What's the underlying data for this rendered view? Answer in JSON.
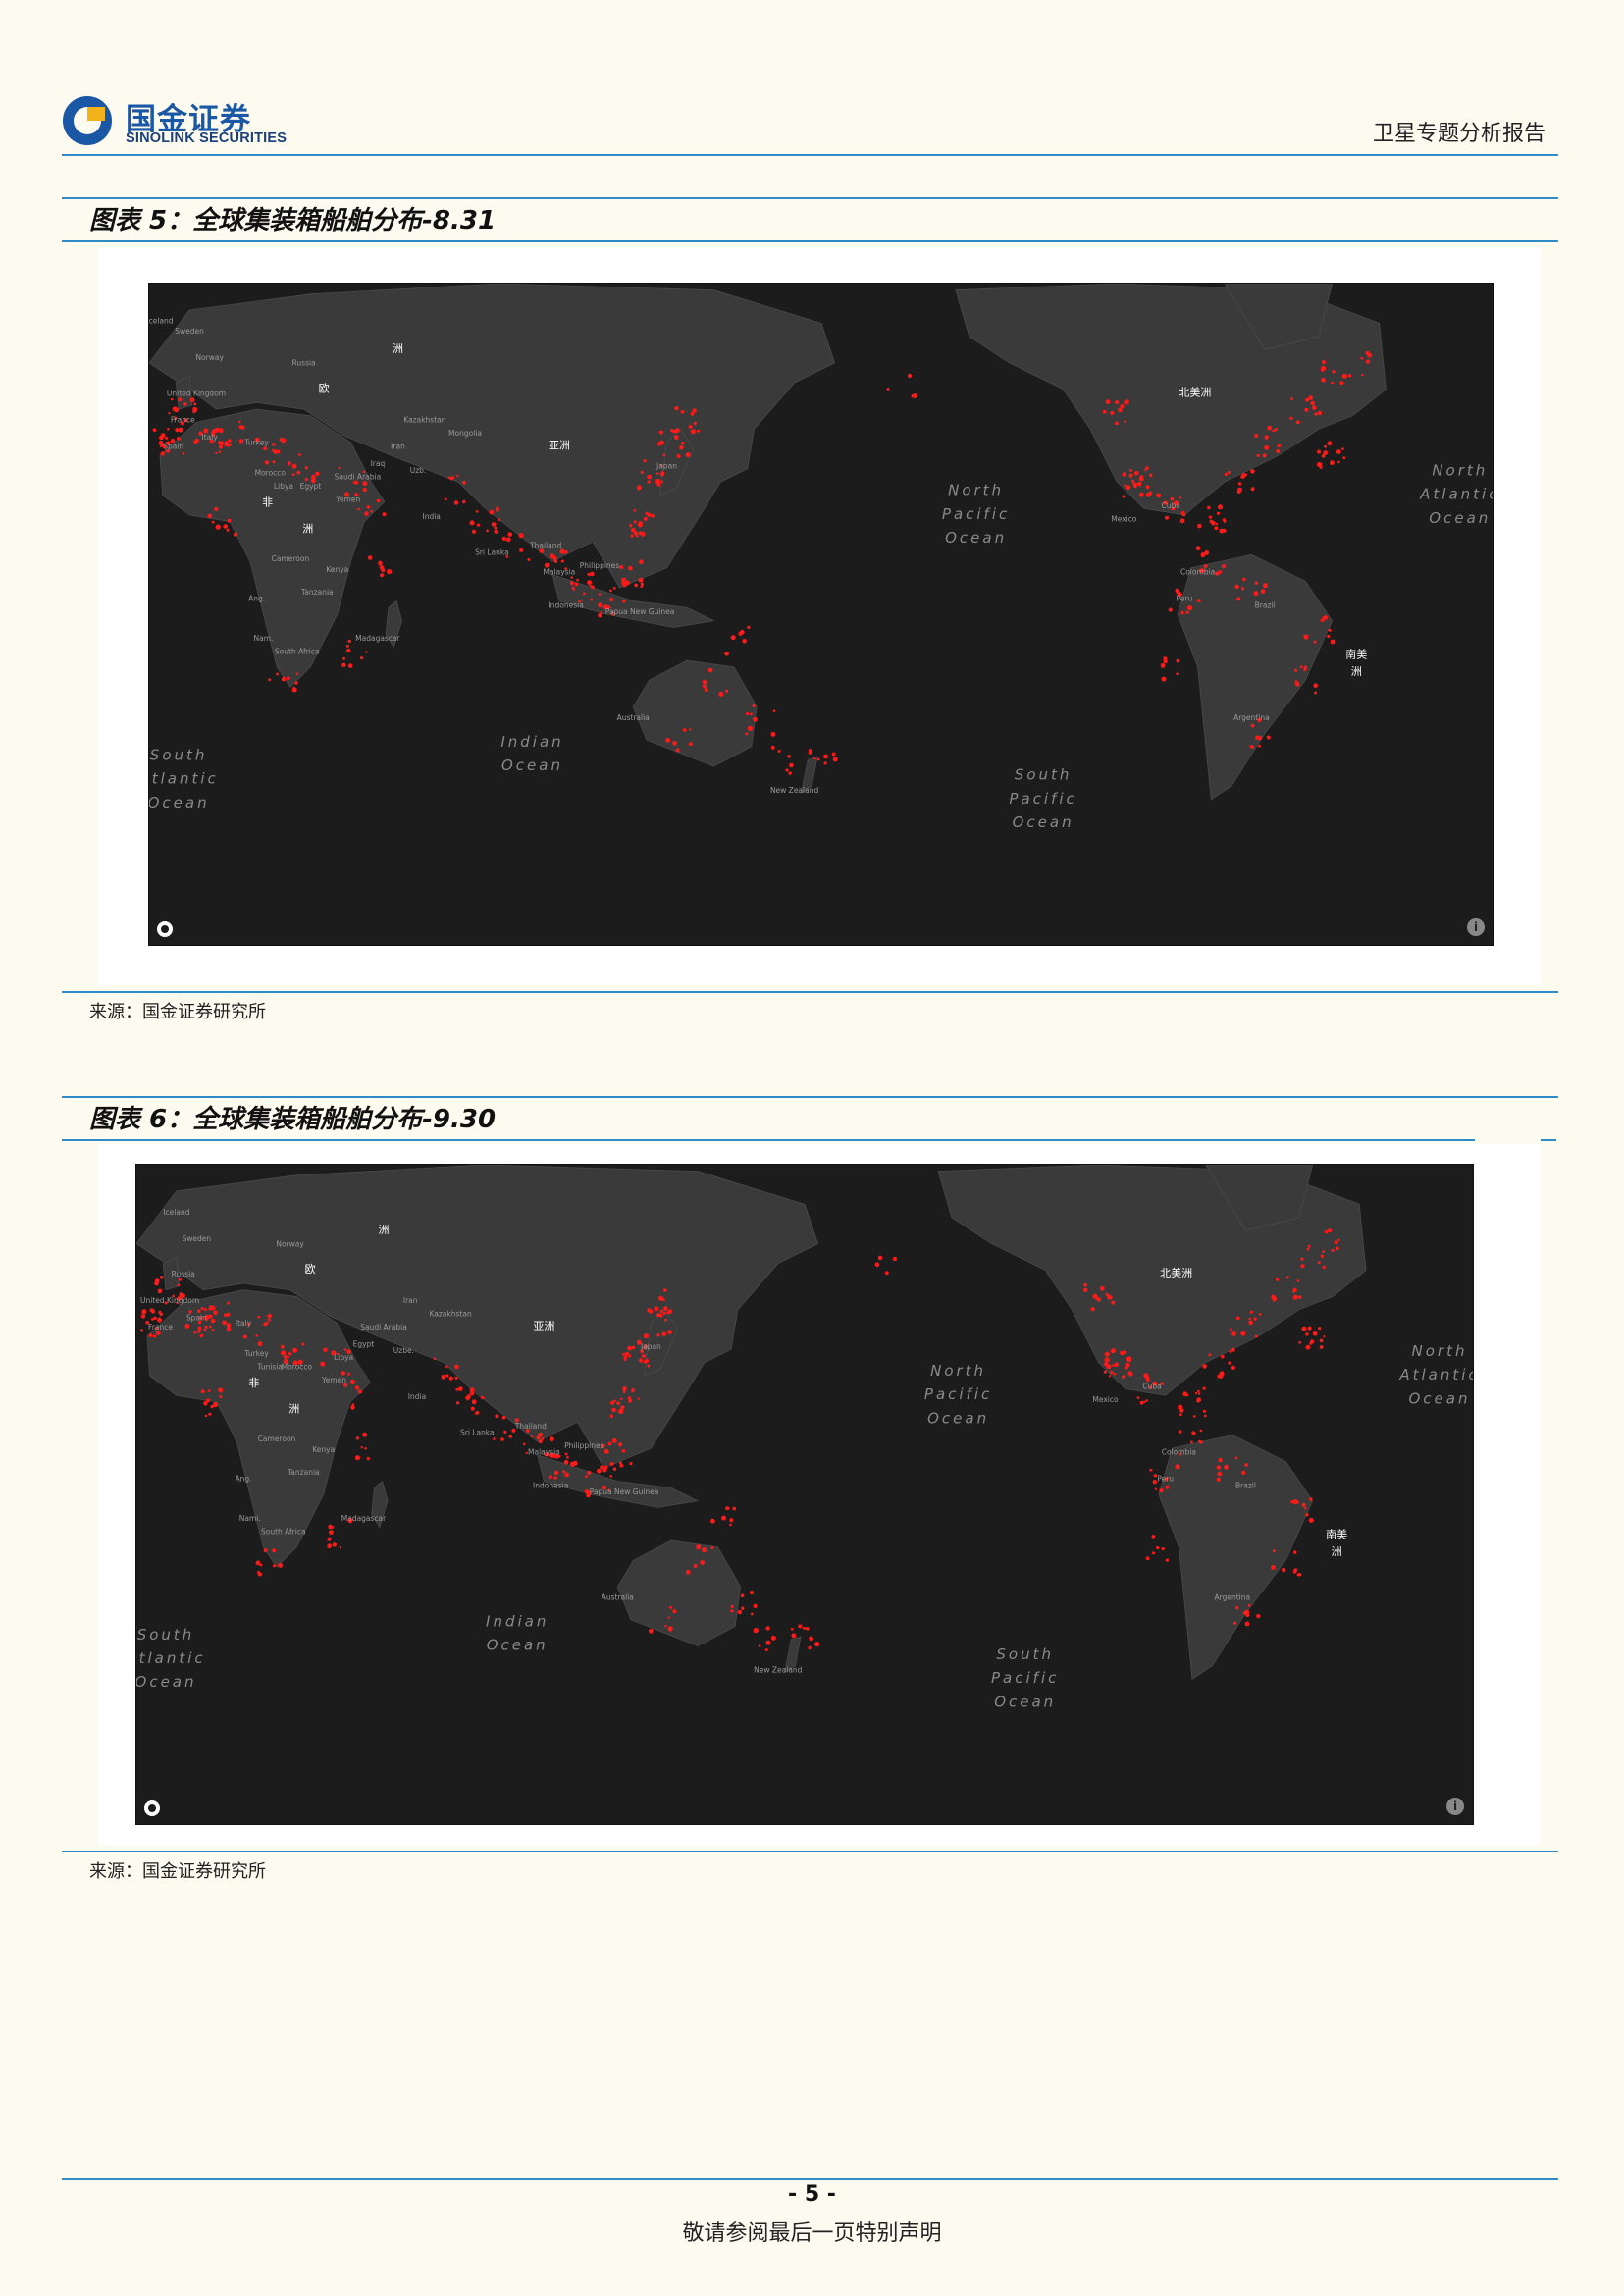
{
  "header": {
    "logo_cn": "国金证券",
    "logo_en": "SINOLINK SECURITIES",
    "report_type": "卫星专题分析报告"
  },
  "figures": [
    {
      "title": "图表 5：全球集装箱船舶分布-8.31",
      "source": "来源：国金证券研究所",
      "map_labels": {
        "europe": "欧",
        "europe2": "洲",
        "asia": "亚洲",
        "africa1": "非",
        "africa2": "洲",
        "north_america": "北美洲",
        "south_america1": "南美",
        "south_america2": "洲",
        "north_pacific": [
          "North",
          "Pacific",
          "Ocean"
        ],
        "north_atlantic": [
          "North",
          "Atlantic",
          "Ocean"
        ],
        "south_atlantic": [
          "South",
          "Atlantic",
          "Ocean"
        ],
        "indian_ocean": [
          "Indian",
          "Ocean"
        ],
        "south_pacific": [
          "South",
          "Pacific",
          "Ocean"
        ],
        "countries": [
          "Sweden",
          "Norway",
          "Russia",
          "United Kingdom",
          "France",
          "Spain",
          "Italy",
          "Turkey",
          "Morocco",
          "Libya",
          "Egypt",
          "Saudi Arabia",
          "Iraq",
          "Iran",
          "Kazakhstan",
          "Mongolia",
          "Uzb.",
          "India",
          "Yemen",
          "Sri Lanka",
          "Thailand",
          "Malaysia",
          "Indonesia",
          "Philippines",
          "Japan",
          "Papua New Guinea",
          "Australia",
          "New Zealand",
          "Madagascar",
          "South Africa",
          "Nam.",
          "Ang.",
          "Tanzania",
          "Kenya",
          "Cameroon",
          "Mexico",
          "Cuba",
          "Colombia",
          "Peru",
          "Brazil",
          "Argentina",
          "Iceland"
        ]
      }
    },
    {
      "title": "图表 6：全球集装箱船舶分布-9.30",
      "source": "来源：国金证券研究所",
      "map_labels": {
        "europe": "欧",
        "europe2": "洲",
        "asia": "亚洲",
        "africa1": "非",
        "africa2": "洲",
        "north_america": "北美洲",
        "south_america1": "南美",
        "south_america2": "洲",
        "north_pacific": [
          "North",
          "Pacific",
          "Ocean"
        ],
        "north_atlantic": [
          "North",
          "Atlantic",
          "Ocean"
        ],
        "south_atlantic": [
          "South",
          "Atlantic",
          "Ocean"
        ],
        "indian_ocean": [
          "Indian",
          "Ocean"
        ],
        "south_pacific": [
          "South",
          "Pacific",
          "Ocean"
        ],
        "countries": [
          "Iceland",
          "Sweden",
          "Norway",
          "Russia",
          "United Kingdom",
          "France",
          "Spain",
          "Italy",
          "Turkey",
          "Tunisia",
          "Morocco",
          "Libya",
          "Egypt",
          "Saudi Arabia",
          "Iran",
          "Kazakhstan",
          "Uzbe.",
          "India",
          "Yemen",
          "Sri Lanka",
          "Thailand",
          "Malaysia",
          "Indonesia",
          "Philippines",
          "Japan",
          "Papua New Guinea",
          "Australia",
          "New Zealand",
          "Madagascar",
          "South Africa",
          "Nami.",
          "Ang.",
          "Tanzania",
          "Kenya",
          "Cameroon",
          "Mexico",
          "Cuba",
          "Colombia",
          "Peru",
          "Brazil",
          "Argentina"
        ]
      }
    }
  ],
  "footer": {
    "page_number": "- 5 -",
    "disclaimer": "敬请参阅最后一页特别声明"
  },
  "colors": {
    "accent": "#2e8bc8",
    "map_bg": "#1c1c1c",
    "land": "#3a3a3a",
    "ship_dot": "#ff1a1a"
  }
}
